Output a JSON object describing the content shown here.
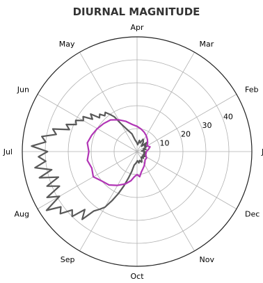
{
  "chart_data": {
    "type": "line",
    "subtype": "polar",
    "title": "DIURNAL MAGNITUDE",
    "angular_ticks": [
      "Jan",
      "Feb",
      "Mar",
      "Apr",
      "May",
      "Jun",
      "Jul",
      "Aug",
      "Sep",
      "Oct",
      "Nov",
      "Dec"
    ],
    "angular_direction": "counterclockwise",
    "angular_zero": "Jan at right (east)",
    "radial_ticks": [
      10,
      20,
      30,
      40
    ],
    "rlim": [
      0,
      50
    ],
    "grid": true,
    "legend": "none",
    "series": [
      {
        "color": "#595959",
        "points": [
          [
            1,
            3
          ],
          [
            8,
            2
          ],
          [
            15,
            4
          ],
          [
            22,
            3
          ],
          [
            29,
            5
          ],
          [
            36,
            4
          ],
          [
            43,
            6
          ],
          [
            50,
            3
          ],
          [
            57,
            5
          ],
          [
            64,
            6
          ],
          [
            71,
            4
          ],
          [
            78,
            5
          ],
          [
            85,
            3
          ],
          [
            92,
            4
          ],
          [
            99,
            5
          ],
          [
            106,
            8
          ],
          [
            113,
            10
          ],
          [
            120,
            14
          ],
          [
            123,
            18
          ],
          [
            126,
            20
          ],
          [
            129,
            22
          ],
          [
            132,
            21
          ],
          [
            135,
            23
          ],
          [
            138,
            22
          ],
          [
            141,
            26
          ],
          [
            144,
            24
          ],
          [
            147,
            28
          ],
          [
            150,
            27
          ],
          [
            153,
            30
          ],
          [
            156,
            29
          ],
          [
            159,
            33
          ],
          [
            162,
            31
          ],
          [
            165,
            38
          ],
          [
            168,
            36
          ],
          [
            171,
            42
          ],
          [
            174,
            40
          ],
          [
            177,
            46
          ],
          [
            180,
            39
          ],
          [
            183,
            43
          ],
          [
            186,
            40
          ],
          [
            189,
            45
          ],
          [
            192,
            38
          ],
          [
            195,
            44
          ],
          [
            198,
            36
          ],
          [
            201,
            42
          ],
          [
            204,
            37
          ],
          [
            207,
            44
          ],
          [
            210,
            39
          ],
          [
            213,
            47
          ],
          [
            216,
            41
          ],
          [
            219,
            43
          ],
          [
            222,
            38
          ],
          [
            225,
            40
          ],
          [
            228,
            34
          ],
          [
            231,
            38
          ],
          [
            234,
            32
          ],
          [
            237,
            30
          ],
          [
            240,
            28
          ],
          [
            243,
            24
          ],
          [
            246,
            20
          ],
          [
            249,
            16
          ],
          [
            252,
            12
          ],
          [
            255,
            9
          ],
          [
            258,
            6
          ],
          [
            265,
            5
          ],
          [
            272,
            4
          ],
          [
            279,
            5
          ],
          [
            286,
            4
          ],
          [
            293,
            5
          ],
          [
            300,
            4
          ],
          [
            307,
            3
          ],
          [
            314,
            4
          ],
          [
            321,
            3
          ],
          [
            328,
            4
          ],
          [
            335,
            3
          ],
          [
            342,
            4
          ],
          [
            349,
            3
          ],
          [
            356,
            4
          ]
        ]
      },
      {
        "color": "#b135b5",
        "points": [
          [
            1,
            4
          ],
          [
            10,
            5
          ],
          [
            20,
            6
          ],
          [
            30,
            5
          ],
          [
            40,
            6
          ],
          [
            50,
            7
          ],
          [
            60,
            8
          ],
          [
            70,
            9
          ],
          [
            80,
            10
          ],
          [
            90,
            11
          ],
          [
            100,
            12
          ],
          [
            110,
            14
          ],
          [
            120,
            16
          ],
          [
            130,
            18
          ],
          [
            140,
            19
          ],
          [
            150,
            20
          ],
          [
            160,
            21
          ],
          [
            170,
            22
          ],
          [
            180,
            21
          ],
          [
            190,
            22
          ],
          [
            200,
            21
          ],
          [
            210,
            22
          ],
          [
            220,
            20
          ],
          [
            230,
            19
          ],
          [
            240,
            17
          ],
          [
            250,
            15
          ],
          [
            258,
            13
          ],
          [
            264,
            11
          ],
          [
            270,
            10
          ],
          [
            276,
            11
          ],
          [
            282,
            9
          ],
          [
            288,
            8
          ],
          [
            296,
            7
          ],
          [
            304,
            6
          ],
          [
            314,
            5
          ],
          [
            326,
            5
          ],
          [
            340,
            4
          ],
          [
            352,
            4
          ]
        ]
      }
    ]
  }
}
